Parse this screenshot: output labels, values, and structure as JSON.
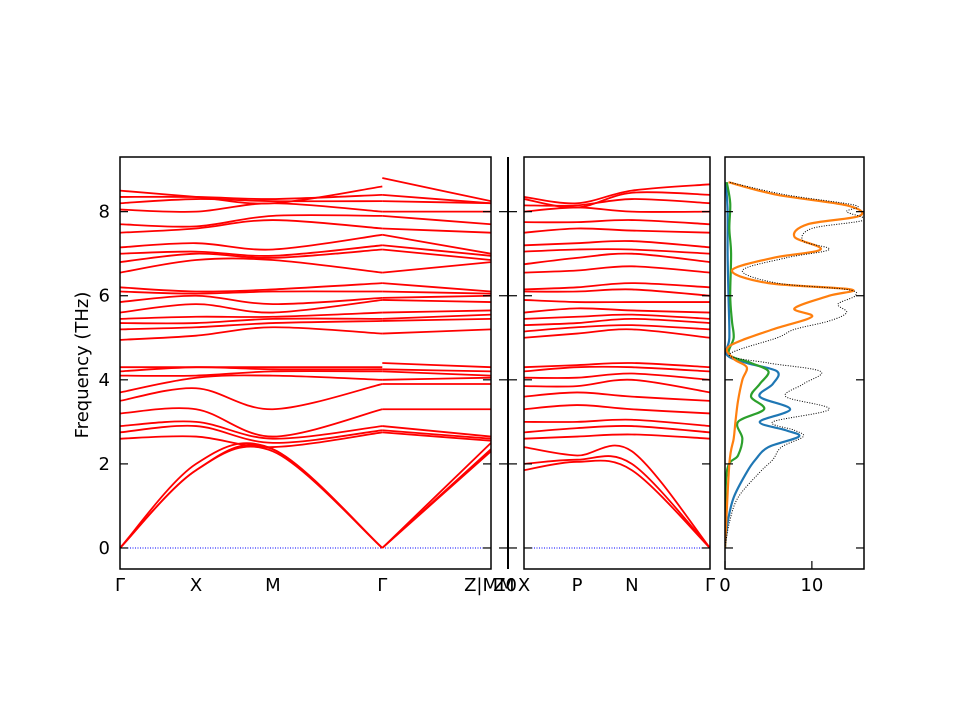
{
  "chart_data": [
    {
      "type": "line",
      "panel": "band-structure-1",
      "ylabel": "Frequency (THz)",
      "ylim": [
        -0.5,
        9.3
      ],
      "yticks": [
        0,
        2,
        4,
        6,
        8
      ],
      "xticks": [
        "Γ",
        "X",
        "M",
        "Γ",
        "Z|M"
      ],
      "xtick_pos": [
        0,
        0.205,
        0.412,
        0.707,
        1.0
      ],
      "line_color": "#ff0000",
      "zero_line_color": "#0000ff",
      "segments": [
        {
          "x": [
            0,
            0.205,
            0.412,
            0.707
          ],
          "bands": [
            [
              0,
              1.85,
              2.3,
              0
            ],
            [
              0,
              1.85,
              2.35,
              0
            ],
            [
              0,
              2.0,
              2.35,
              0
            ],
            [
              2.6,
              2.65,
              2.4,
              2.75
            ],
            [
              2.75,
              2.9,
              2.5,
              2.8
            ],
            [
              2.9,
              3.0,
              2.6,
              2.9
            ],
            [
              3.2,
              3.3,
              2.65,
              3.3
            ],
            [
              3.5,
              3.8,
              3.3,
              3.9
            ],
            [
              3.7,
              4.05,
              4.1,
              4.0
            ],
            [
              4.1,
              4.1,
              4.2,
              4.2
            ],
            [
              4.2,
              4.3,
              4.25,
              4.25
            ],
            [
              4.3,
              4.3,
              4.3,
              4.3
            ],
            [
              4.95,
              5.05,
              5.25,
              5.1
            ],
            [
              5.2,
              5.25,
              5.35,
              5.4
            ],
            [
              5.35,
              5.35,
              5.45,
              5.45
            ],
            [
              5.45,
              5.5,
              5.5,
              5.6
            ],
            [
              5.6,
              5.8,
              5.6,
              5.9
            ],
            [
              5.85,
              6.0,
              5.8,
              5.95
            ],
            [
              6.1,
              6.05,
              6.1,
              6.1
            ],
            [
              6.2,
              6.1,
              6.15,
              6.3
            ],
            [
              6.55,
              6.85,
              6.85,
              6.55
            ],
            [
              6.8,
              7.0,
              6.9,
              7.1
            ],
            [
              7.0,
              7.05,
              6.95,
              7.2
            ],
            [
              7.15,
              7.25,
              7.1,
              7.45
            ],
            [
              7.5,
              7.6,
              7.8,
              7.6
            ],
            [
              7.7,
              7.65,
              7.9,
              7.9
            ],
            [
              8.05,
              8.0,
              8.2,
              8.0
            ],
            [
              8.2,
              8.3,
              8.25,
              8.25
            ],
            [
              8.35,
              8.35,
              8.3,
              8.4
            ],
            [
              8.5,
              8.35,
              8.2,
              8.6
            ]
          ]
        },
        {
          "x": [
            0.707,
            1.0
          ],
          "bands": [
            [
              0,
              2.3
            ],
            [
              0,
              2.35
            ],
            [
              0,
              2.5
            ],
            [
              2.75,
              2.55
            ],
            [
              2.8,
              2.6
            ],
            [
              2.9,
              2.65
            ],
            [
              3.3,
              3.3
            ],
            [
              3.9,
              3.9
            ],
            [
              4.0,
              4.05
            ],
            [
              4.2,
              4.1
            ],
            [
              4.25,
              4.2
            ],
            [
              4.4,
              4.3
            ],
            [
              5.1,
              5.2
            ],
            [
              5.4,
              5.45
            ],
            [
              5.45,
              5.55
            ],
            [
              5.6,
              5.65
            ],
            [
              5.9,
              5.85
            ],
            [
              5.95,
              6.0
            ],
            [
              6.1,
              6.05
            ],
            [
              6.3,
              6.1
            ],
            [
              6.55,
              6.8
            ],
            [
              7.1,
              6.85
            ],
            [
              7.2,
              6.95
            ],
            [
              7.45,
              7.0
            ],
            [
              7.6,
              7.5
            ],
            [
              7.9,
              7.7
            ],
            [
              8.0,
              8.0
            ],
            [
              8.25,
              8.2
            ],
            [
              8.4,
              8.2
            ],
            [
              8.8,
              8.25
            ]
          ]
        }
      ]
    },
    {
      "type": "line",
      "panel": "band-structure-2",
      "xticks": [
        "Z0",
        "M"
      ],
      "xtick_pos": [
        0,
        1
      ],
      "segments": []
    },
    {
      "type": "line",
      "panel": "band-structure-3",
      "xticks": [
        "X",
        "P",
        "N",
        "Γ"
      ],
      "xtick_pos": [
        0,
        0.285,
        0.58,
        1.0
      ],
      "line_color": "#ff0000",
      "zero_line_color": "#0000ff",
      "segments": [
        {
          "x": [
            0,
            0.285,
            0.58,
            1.0
          ],
          "bands": [
            [
              1.85,
              2.05,
              1.85,
              0
            ],
            [
              2.0,
              2.1,
              2.0,
              0
            ],
            [
              2.4,
              2.2,
              2.3,
              0
            ],
            [
              2.6,
              2.65,
              2.7,
              2.6
            ],
            [
              2.75,
              2.85,
              2.9,
              2.75
            ],
            [
              3.0,
              3.0,
              3.05,
              2.9
            ],
            [
              3.3,
              3.4,
              3.3,
              3.2
            ],
            [
              3.6,
              3.7,
              3.6,
              3.5
            ],
            [
              3.85,
              3.85,
              4.0,
              3.7
            ],
            [
              4.05,
              4.05,
              4.15,
              4.0
            ],
            [
              4.2,
              4.3,
              4.3,
              4.2
            ],
            [
              4.3,
              4.35,
              4.4,
              4.3
            ],
            [
              5.0,
              5.1,
              5.2,
              5.0
            ],
            [
              5.15,
              5.25,
              5.3,
              5.2
            ],
            [
              5.3,
              5.35,
              5.45,
              5.35
            ],
            [
              5.45,
              5.5,
              5.55,
              5.45
            ],
            [
              5.6,
              5.7,
              5.65,
              5.6
            ],
            [
              5.9,
              5.85,
              5.85,
              5.85
            ],
            [
              6.1,
              6.1,
              6.15,
              6.0
            ],
            [
              6.15,
              6.2,
              6.3,
              6.2
            ],
            [
              6.55,
              6.6,
              6.7,
              6.55
            ],
            [
              6.75,
              6.9,
              7.0,
              6.8
            ],
            [
              7.05,
              7.1,
              7.1,
              7.0
            ],
            [
              7.2,
              7.25,
              7.3,
              7.15
            ],
            [
              7.5,
              7.6,
              7.55,
              7.5
            ],
            [
              7.75,
              7.75,
              7.8,
              7.7
            ],
            [
              8.0,
              8.1,
              8.0,
              8.0
            ],
            [
              8.15,
              8.15,
              8.3,
              8.2
            ],
            [
              8.3,
              8.1,
              8.45,
              8.4
            ],
            [
              8.35,
              8.2,
              8.5,
              8.65
            ]
          ]
        }
      ]
    },
    {
      "type": "line",
      "panel": "dos",
      "xticks": [
        "0",
        "10"
      ],
      "xtick_values": [
        0,
        10
      ],
      "xlim": [
        0,
        16
      ],
      "series": [
        {
          "color": "#000000",
          "style": "dotted",
          "y": [
            0,
            0.6,
            1.2,
            1.8,
            2.1,
            2.4,
            2.65,
            2.8,
            3.0,
            3.3,
            3.6,
            3.9,
            4.2,
            4.4,
            4.6,
            5.0,
            5.2,
            5.4,
            5.6,
            5.8,
            6.0,
            6.15,
            6.3,
            6.6,
            6.9,
            7.1,
            7.3,
            7.6,
            7.8,
            8.0,
            8.15,
            8.4,
            8.7
          ],
          "x": [
            0,
            0.5,
            1.5,
            4.0,
            5.5,
            6.5,
            9.0,
            8.0,
            5.5,
            12.0,
            7.0,
            9.0,
            11.0,
            5.0,
            0.5,
            6.0,
            8.0,
            12.0,
            14.0,
            13.0,
            15.0,
            14.0,
            6.0,
            2.0,
            7.0,
            12.0,
            9.0,
            10.0,
            16.0,
            14.0,
            15.0,
            7.0,
            0.5
          ]
        },
        {
          "color": "#1f77b4",
          "style": "solid",
          "y": [
            0,
            0.6,
            1.2,
            1.8,
            2.1,
            2.4,
            2.65,
            2.8,
            3.0,
            3.3,
            3.6,
            3.9,
            4.2,
            4.4,
            4.6,
            5.0,
            6.0,
            7.0,
            8.0,
            8.7
          ],
          "x": [
            0,
            0.3,
            1.0,
            2.5,
            3.5,
            5.0,
            8.5,
            7.0,
            4.0,
            7.5,
            4.0,
            5.5,
            6.0,
            2.5,
            0.2,
            0.5,
            0.4,
            0.3,
            0.3,
            0.1
          ]
        },
        {
          "color": "#ff7f0e",
          "style": "solid",
          "y": [
            0,
            2.0,
            2.6,
            3.0,
            3.5,
            4.0,
            4.3,
            4.5,
            4.8,
            5.2,
            5.5,
            5.7,
            6.0,
            6.15,
            6.3,
            6.6,
            6.9,
            7.1,
            7.4,
            7.7,
            7.9,
            8.15,
            8.4,
            8.7
          ],
          "x": [
            0,
            0.5,
            1.0,
            1.2,
            1.5,
            2.0,
            2.5,
            1.0,
            0.5,
            5.5,
            10.0,
            8.0,
            12.0,
            14.5,
            5.0,
            0.8,
            5.5,
            11.0,
            8.0,
            9.5,
            15.5,
            14.0,
            6.0,
            0.4
          ]
        },
        {
          "color": "#2ca02c",
          "style": "solid",
          "y": [
            0,
            1.8,
            2.2,
            2.6,
            3.0,
            3.3,
            3.6,
            3.9,
            4.2,
            4.4,
            4.6,
            5.0,
            5.4,
            6.0,
            7.0,
            7.6,
            8.2,
            8.7
          ],
          "x": [
            0,
            0.2,
            1.5,
            2.0,
            1.5,
            4.5,
            3.0,
            4.0,
            5.0,
            3.0,
            0.5,
            1.0,
            0.8,
            0.6,
            0.7,
            0.5,
            0.6,
            0.2
          ]
        }
      ]
    }
  ]
}
